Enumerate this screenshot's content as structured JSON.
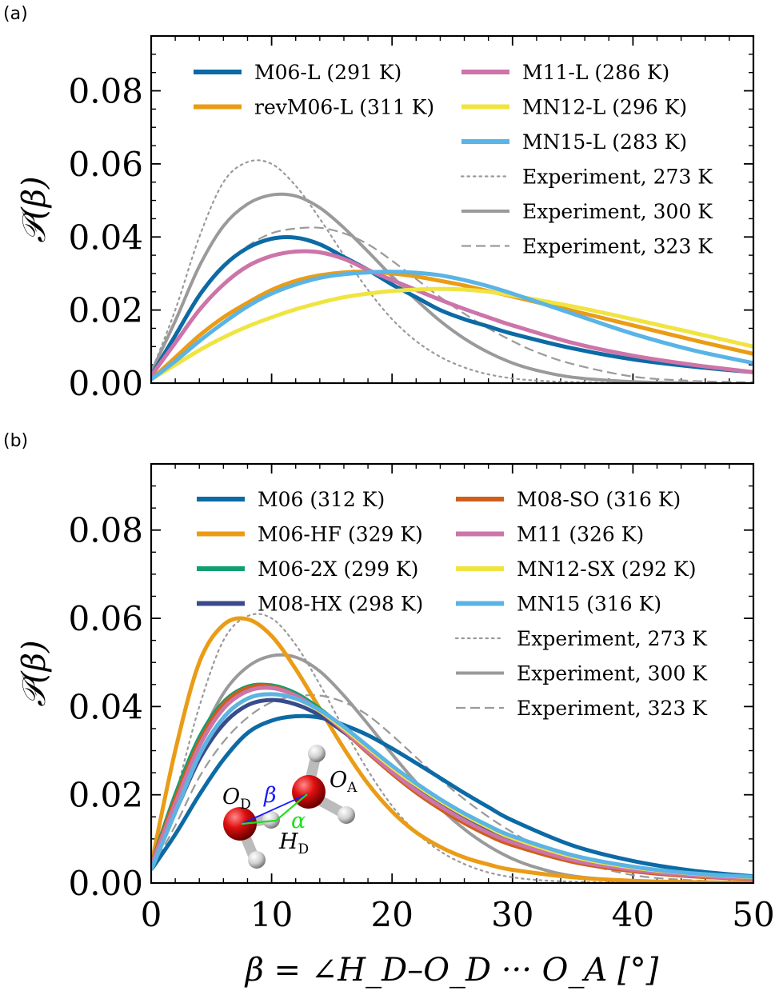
{
  "figure": {
    "xlabel": "β = ∠H_D–O_D ··· O_A [°]",
    "ylabel": "𝒫(β)"
  },
  "chart_data": [
    {
      "panel": "(a)",
      "type": "line",
      "xlim": [
        0,
        50
      ],
      "ylim": [
        0,
        0.095
      ],
      "xticks": [
        "",
        "",
        "",
        "",
        "",
        ""
      ],
      "yticks": [
        "0.00",
        "0.02",
        "0.04",
        "0.06",
        "0.08"
      ],
      "ylabel": "𝒫(β)",
      "legend": "top",
      "series": [
        {
          "name": "M06-L (291 K)",
          "color": "#0c6aa5",
          "style": "solid",
          "x": [
            0,
            2,
            4,
            6,
            8,
            10,
            12,
            14,
            16,
            18,
            20,
            22,
            24,
            26,
            28,
            30,
            35,
            40,
            45,
            50
          ],
          "y": [
            0.002,
            0.013,
            0.024,
            0.032,
            0.037,
            0.0395,
            0.0398,
            0.038,
            0.0345,
            0.031,
            0.027,
            0.0235,
            0.02,
            0.0175,
            0.0155,
            0.0135,
            0.0095,
            0.0065,
            0.0045,
            0.003
          ]
        },
        {
          "name": "revM06-L (311 K)",
          "color": "#ea9c16",
          "style": "solid",
          "x": [
            0,
            2,
            4,
            6,
            8,
            10,
            12,
            14,
            16,
            18,
            20,
            22,
            24,
            26,
            28,
            30,
            35,
            40,
            45,
            50
          ],
          "y": [
            0.001,
            0.007,
            0.013,
            0.018,
            0.022,
            0.0255,
            0.028,
            0.0295,
            0.0303,
            0.0305,
            0.03,
            0.0292,
            0.028,
            0.0267,
            0.0252,
            0.0237,
            0.0198,
            0.0158,
            0.0118,
            0.008
          ]
        },
        {
          "name": "M11-L (286 K)",
          "color": "#cd74a9",
          "style": "solid",
          "x": [
            0,
            2,
            4,
            6,
            8,
            10,
            12,
            14,
            16,
            18,
            20,
            22,
            24,
            26,
            28,
            30,
            35,
            40,
            45,
            50
          ],
          "y": [
            0.002,
            0.011,
            0.02,
            0.027,
            0.032,
            0.0348,
            0.036,
            0.0358,
            0.034,
            0.031,
            0.0282,
            0.0255,
            0.0228,
            0.0203,
            0.018,
            0.0158,
            0.011,
            0.0075,
            0.005,
            0.003
          ]
        },
        {
          "name": "MN12-L (296 K)",
          "color": "#f0e442",
          "style": "solid",
          "x": [
            0,
            2,
            4,
            6,
            8,
            10,
            12,
            14,
            16,
            18,
            20,
            22,
            24,
            26,
            28,
            30,
            35,
            40,
            45,
            50
          ],
          "y": [
            0.001,
            0.005,
            0.009,
            0.0125,
            0.0155,
            0.018,
            0.0202,
            0.022,
            0.0235,
            0.0245,
            0.0252,
            0.0256,
            0.0258,
            0.0256,
            0.025,
            0.024,
            0.021,
            0.0175,
            0.0138,
            0.01
          ]
        },
        {
          "name": "MN15-L (283 K)",
          "color": "#5ab4e5",
          "style": "solid",
          "x": [
            0,
            2,
            4,
            6,
            8,
            10,
            12,
            14,
            16,
            18,
            20,
            22,
            24,
            26,
            28,
            30,
            35,
            40,
            45,
            50
          ],
          "y": [
            0.001,
            0.006,
            0.0115,
            0.0165,
            0.021,
            0.0245,
            0.027,
            0.0288,
            0.0298,
            0.0303,
            0.0305,
            0.0302,
            0.0295,
            0.0282,
            0.0265,
            0.0245,
            0.019,
            0.0135,
            0.009,
            0.0055
          ]
        },
        {
          "name": "Experiment, 273 K",
          "color": "#9a9a9a",
          "style": "dotted",
          "x": [
            0,
            2,
            4,
            6,
            8,
            10,
            12,
            14,
            16,
            18,
            20,
            22,
            24,
            26,
            28,
            30,
            32,
            35,
            40
          ],
          "y": [
            0.003,
            0.02,
            0.04,
            0.055,
            0.0605,
            0.06,
            0.054,
            0.045,
            0.035,
            0.0255,
            0.0175,
            0.0115,
            0.0072,
            0.0043,
            0.0024,
            0.0013,
            0.0007,
            0.0003,
            0.0
          ]
        },
        {
          "name": "Experiment, 300 K",
          "color": "#9a9a9a",
          "style": "solid",
          "x": [
            0,
            2,
            4,
            6,
            8,
            10,
            12,
            14,
            16,
            18,
            20,
            22,
            24,
            26,
            28,
            30,
            32,
            35,
            40,
            45
          ],
          "y": [
            0.003,
            0.017,
            0.032,
            0.043,
            0.049,
            0.0515,
            0.0512,
            0.048,
            0.0425,
            0.036,
            0.0292,
            0.0228,
            0.017,
            0.0122,
            0.0084,
            0.0055,
            0.0035,
            0.0016,
            0.0004,
            0.0
          ]
        },
        {
          "name": "Experiment, 323 K",
          "color": "#9a9a9a",
          "style": "dashed",
          "x": [
            0,
            2,
            4,
            6,
            8,
            10,
            12,
            14,
            16,
            18,
            20,
            22,
            24,
            26,
            28,
            30,
            32,
            35,
            40,
            45,
            50
          ],
          "y": [
            0.003,
            0.013,
            0.024,
            0.032,
            0.0375,
            0.041,
            0.0423,
            0.0425,
            0.041,
            0.038,
            0.0335,
            0.0285,
            0.0235,
            0.019,
            0.015,
            0.0115,
            0.0085,
            0.0052,
            0.0018,
            0.0006,
            0.0002
          ]
        }
      ]
    },
    {
      "panel": "(b)",
      "type": "line",
      "xlim": [
        0,
        50
      ],
      "ylim": [
        0,
        0.095
      ],
      "xticks": [
        "0",
        "10",
        "20",
        "30",
        "40",
        "50"
      ],
      "yticks": [
        "0.00",
        "0.02",
        "0.04",
        "0.06",
        "0.08"
      ],
      "xlabel": "β = ∠H_D–O_D ··· O_A [°]",
      "ylabel": "𝒫(β)",
      "legend": "top",
      "series": [
        {
          "name": "M06 (312 K)",
          "color": "#0c6aa5",
          "style": "solid",
          "x": [
            0,
            2,
            4,
            6,
            8,
            10,
            12,
            14,
            16,
            18,
            20,
            22,
            24,
            26,
            28,
            30,
            35,
            40,
            45,
            50
          ],
          "y": [
            0.003,
            0.011,
            0.02,
            0.028,
            0.034,
            0.0368,
            0.0378,
            0.0375,
            0.0358,
            0.0335,
            0.0305,
            0.0272,
            0.0238,
            0.0204,
            0.0172,
            0.0142,
            0.0085,
            0.005,
            0.0028,
            0.0015
          ]
        },
        {
          "name": "M06-HF (329 K)",
          "color": "#ea9c16",
          "style": "solid",
          "x": [
            0,
            2,
            4,
            6,
            8,
            10,
            12,
            14,
            16,
            18,
            20,
            22,
            24,
            26,
            28,
            30,
            35,
            40,
            45,
            50
          ],
          "y": [
            0.004,
            0.03,
            0.05,
            0.0585,
            0.0598,
            0.056,
            0.0485,
            0.0395,
            0.0305,
            0.0225,
            0.0162,
            0.0115,
            0.0082,
            0.0058,
            0.0042,
            0.003,
            0.0013,
            0.0005,
            0.0002,
            0.0001
          ]
        },
        {
          "name": "M06-2X (299 K)",
          "color": "#139e72",
          "style": "solid",
          "x": [
            0,
            2,
            4,
            6,
            8,
            10,
            12,
            14,
            16,
            18,
            20,
            22,
            24,
            26,
            28,
            30,
            35,
            40,
            45,
            50
          ],
          "y": [
            0.004,
            0.02,
            0.033,
            0.041,
            0.0445,
            0.0448,
            0.043,
            0.0395,
            0.035,
            0.03,
            0.0252,
            0.021,
            0.0172,
            0.014,
            0.0112,
            0.009,
            0.005,
            0.0028,
            0.0016,
            0.001
          ]
        },
        {
          "name": "M08-HX (298 K)",
          "color": "#394b8c",
          "style": "solid",
          "x": [
            0,
            2,
            4,
            6,
            8,
            10,
            12,
            14,
            16,
            18,
            20,
            22,
            24,
            26,
            28,
            30,
            35,
            40,
            45,
            50
          ],
          "y": [
            0.003,
            0.016,
            0.028,
            0.036,
            0.0403,
            0.0415,
            0.0405,
            0.038,
            0.0342,
            0.03,
            0.0258,
            0.0218,
            0.0182,
            0.015,
            0.0122,
            0.0098,
            0.0055,
            0.0031,
            0.0018,
            0.001
          ]
        },
        {
          "name": "M08-SO (316 K)",
          "color": "#cf5e1a",
          "style": "solid",
          "x": [
            0,
            2,
            4,
            6,
            8,
            10,
            12,
            14,
            16,
            18,
            20,
            22,
            24,
            26,
            28,
            30,
            35,
            40,
            45,
            50
          ],
          "y": [
            0.004,
            0.019,
            0.032,
            0.0405,
            0.0442,
            0.0445,
            0.0425,
            0.039,
            0.0345,
            0.0295,
            0.0248,
            0.0205,
            0.0168,
            0.0136,
            0.0108,
            0.0086,
            0.0048,
            0.0027,
            0.0015,
            0.0009
          ]
        },
        {
          "name": "M11 (326 K)",
          "color": "#cd74a9",
          "style": "solid",
          "x": [
            0,
            2,
            4,
            6,
            8,
            10,
            12,
            14,
            16,
            18,
            20,
            22,
            24,
            26,
            28,
            30,
            35,
            40,
            45,
            50
          ],
          "y": [
            0.004,
            0.018,
            0.031,
            0.0395,
            0.0435,
            0.0442,
            0.0425,
            0.039,
            0.0346,
            0.0298,
            0.0252,
            0.021,
            0.0174,
            0.0142,
            0.0114,
            0.0092,
            0.0052,
            0.003,
            0.0017,
            0.001
          ]
        },
        {
          "name": "MN12-SX (292 K)",
          "color": "#f0e442",
          "style": "solid",
          "x": [
            0,
            2,
            4,
            6,
            8,
            10,
            12,
            14,
            16,
            18,
            20,
            22,
            24,
            26,
            28,
            30,
            35,
            40,
            45,
            50
          ],
          "y": [
            0.003,
            0.016,
            0.029,
            0.0375,
            0.0418,
            0.0428,
            0.0418,
            0.039,
            0.035,
            0.0306,
            0.0262,
            0.0222,
            0.0186,
            0.0154,
            0.0126,
            0.0102,
            0.006,
            0.0035,
            0.0021,
            0.0013
          ]
        },
        {
          "name": "MN15 (316 K)",
          "color": "#5ab4e5",
          "style": "solid",
          "x": [
            0,
            2,
            4,
            6,
            8,
            10,
            12,
            14,
            16,
            18,
            20,
            22,
            24,
            26,
            28,
            30,
            35,
            40,
            45,
            50
          ],
          "y": [
            0.003,
            0.016,
            0.029,
            0.0375,
            0.0418,
            0.0428,
            0.0418,
            0.0392,
            0.0354,
            0.031,
            0.0266,
            0.0226,
            0.019,
            0.0158,
            0.013,
            0.0106,
            0.0063,
            0.0037,
            0.0022,
            0.0014
          ]
        },
        {
          "name": "Experiment, 273 K",
          "color": "#9a9a9a",
          "style": "dotted",
          "x": [
            0,
            2,
            4,
            6,
            8,
            10,
            12,
            14,
            16,
            18,
            20,
            22,
            24,
            26,
            28,
            30,
            32,
            35,
            40
          ],
          "y": [
            0.003,
            0.02,
            0.04,
            0.055,
            0.0605,
            0.06,
            0.054,
            0.045,
            0.035,
            0.0255,
            0.0175,
            0.0115,
            0.0072,
            0.0043,
            0.0024,
            0.0013,
            0.0007,
            0.0003,
            0.0
          ]
        },
        {
          "name": "Experiment, 300 K",
          "color": "#9a9a9a",
          "style": "solid",
          "x": [
            0,
            2,
            4,
            6,
            8,
            10,
            12,
            14,
            16,
            18,
            20,
            22,
            24,
            26,
            28,
            30,
            32,
            35,
            40,
            45
          ],
          "y": [
            0.003,
            0.017,
            0.032,
            0.043,
            0.049,
            0.0515,
            0.0512,
            0.048,
            0.0425,
            0.036,
            0.0292,
            0.0228,
            0.017,
            0.0122,
            0.0084,
            0.0055,
            0.0035,
            0.0016,
            0.0004,
            0.0
          ]
        },
        {
          "name": "Experiment, 323 K",
          "color": "#9a9a9a",
          "style": "dashed",
          "x": [
            0,
            2,
            4,
            6,
            8,
            10,
            12,
            14,
            16,
            18,
            20,
            22,
            24,
            26,
            28,
            30,
            32,
            35,
            40,
            45,
            50
          ],
          "y": [
            0.003,
            0.013,
            0.024,
            0.032,
            0.0375,
            0.041,
            0.0423,
            0.0425,
            0.041,
            0.038,
            0.0335,
            0.0285,
            0.0235,
            0.019,
            0.015,
            0.0115,
            0.0085,
            0.0052,
            0.0018,
            0.0006,
            0.0002
          ]
        }
      ],
      "inset_labels": {
        "od": "O",
        "od_sub": "D",
        "oa": "O",
        "oa_sub": "A",
        "hd": "H",
        "hd_sub": "D",
        "beta": "β",
        "alpha": "α"
      }
    }
  ]
}
